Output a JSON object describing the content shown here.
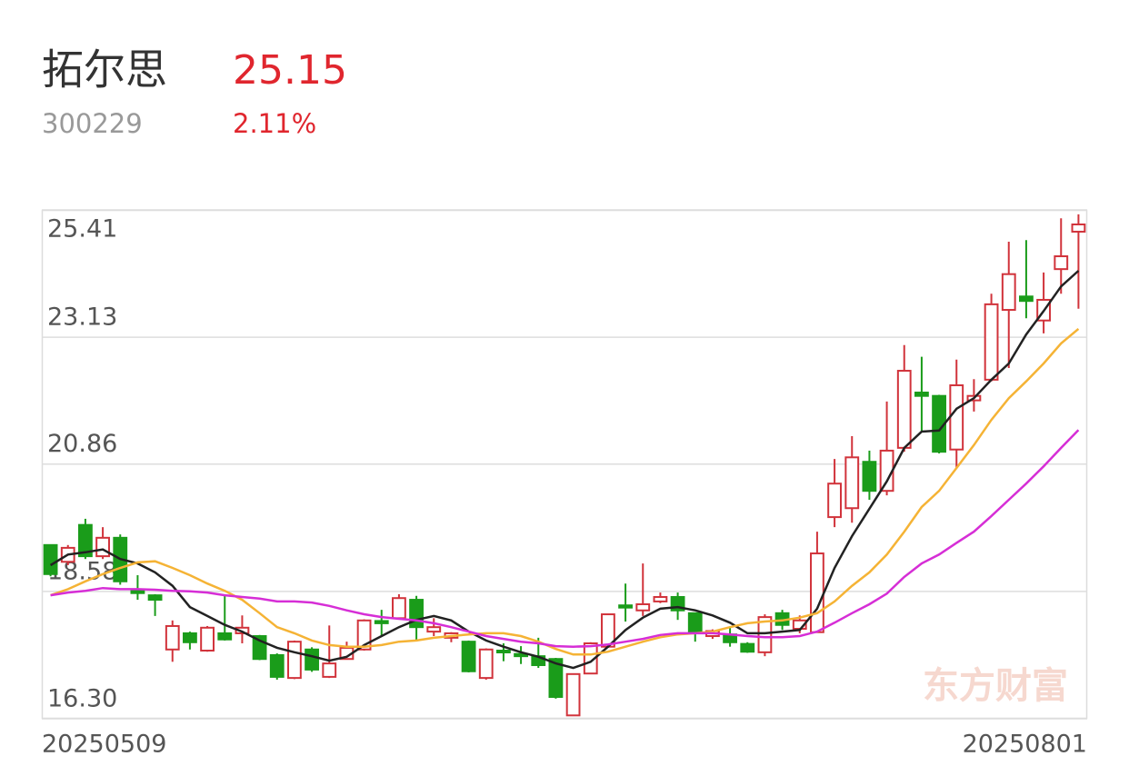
{
  "header": {
    "name": "拓尔思",
    "price": "25.15",
    "code": "300229",
    "change": "2.11%"
  },
  "chart_data": {
    "type": "candlestick",
    "watermark": "东方财富",
    "categories": [
      "20250509",
      null,
      null,
      null,
      null,
      null,
      null,
      null,
      null,
      null,
      null,
      null,
      null,
      null,
      null,
      null,
      null,
      null,
      null,
      null,
      null,
      null,
      null,
      null,
      null,
      null,
      null,
      null,
      null,
      null,
      null,
      null,
      null,
      null,
      null,
      null,
      null,
      null,
      null,
      null,
      null,
      null,
      null,
      null,
      null,
      null,
      null,
      null,
      null,
      null,
      null,
      null,
      null,
      null,
      null,
      null,
      null,
      null,
      null,
      "20250801"
    ],
    "open": [
      19.41,
      19.11,
      19.77,
      19.21,
      19.54,
      18.6,
      18.51,
      17.54,
      17.83,
      17.52,
      17.83,
      17.83,
      17.78,
      17.44,
      17.03,
      17.54,
      17.05,
      17.37,
      17.54,
      18.05,
      18.1,
      18.43,
      17.86,
      17.75,
      17.68,
      17.03,
      17.52,
      17.46,
      17.42,
      17.37,
      16.36,
      17.11,
      17.59,
      18.33,
      18.24,
      18.4,
      18.48,
      18.19,
      17.78,
      17.81,
      17.64,
      17.49,
      18.19,
      17.91,
      17.85,
      19.91,
      20.07,
      20.9,
      20.38,
      21.15,
      22.14,
      22.08,
      21.12,
      22.0,
      22.37,
      23.62,
      23.86,
      23.43,
      24.35,
      25.02
    ],
    "high": [
      19.41,
      19.41,
      19.88,
      19.73,
      19.6,
      18.87,
      18.53,
      18.06,
      17.86,
      17.96,
      18.51,
      18.15,
      17.8,
      17.47,
      17.7,
      17.58,
      17.97,
      17.68,
      18.08,
      18.25,
      18.53,
      18.5,
      18.1,
      17.85,
      17.7,
      17.56,
      17.65,
      17.6,
      17.75,
      17.39,
      17.1,
      17.67,
      18.18,
      18.72,
      19.08,
      18.56,
      18.56,
      18.2,
      17.9,
      17.94,
      17.67,
      18.17,
      18.25,
      18.15,
      19.65,
      20.95,
      21.36,
      21.1,
      21.98,
      22.99,
      22.78,
      22.1,
      22.73,
      22.38,
      23.91,
      24.84,
      24.87,
      24.29,
      25.26,
      25.33
    ],
    "low": [
      18.85,
      19.05,
      19.16,
      19.16,
      18.7,
      18.43,
      18.14,
      17.32,
      17.54,
      17.5,
      17.7,
      17.65,
      17.35,
      17.0,
      17.01,
      17.14,
      17.03,
      17.36,
      17.52,
      17.78,
      18.09,
      17.71,
      17.78,
      17.67,
      17.13,
      17.0,
      17.33,
      17.28,
      17.21,
      16.66,
      16.36,
      17.1,
      17.57,
      18.04,
      18.14,
      18.37,
      18.07,
      17.68,
      17.73,
      17.59,
      17.48,
      17.42,
      17.89,
      17.83,
      17.85,
      19.73,
      19.81,
      20.22,
      20.3,
      21.08,
      21.44,
      21.05,
      20.79,
      21.8,
      22.34,
      22.58,
      23.47,
      23.2,
      23.91,
      23.64
    ],
    "close": [
      18.89,
      19.36,
      19.21,
      19.54,
      18.76,
      18.55,
      18.43,
      17.96,
      17.67,
      17.93,
      17.72,
      17.93,
      17.37,
      17.05,
      17.68,
      17.18,
      17.29,
      17.57,
      18.06,
      18.01,
      18.46,
      17.94,
      17.94,
      17.83,
      17.15,
      17.54,
      17.49,
      17.42,
      17.26,
      16.69,
      17.1,
      17.65,
      18.17,
      18.29,
      18.35,
      18.48,
      18.24,
      17.83,
      17.87,
      17.67,
      17.5,
      18.12,
      17.98,
      18.06,
      19.26,
      20.51,
      20.98,
      20.38,
      21.1,
      22.53,
      22.08,
      21.08,
      22.27,
      22.08,
      23.72,
      24.26,
      23.78,
      23.8,
      24.58,
      25.15
    ],
    "up_color": "#d1333b",
    "down_color": "#1a9c1a",
    "series": [
      {
        "color": "#222222",
        "values": [
          19.05,
          19.24,
          19.28,
          19.33,
          19.16,
          19.08,
          18.92,
          18.68,
          18.3,
          18.14,
          17.98,
          17.86,
          17.7,
          17.57,
          17.49,
          17.42,
          17.34,
          17.41,
          17.62,
          17.78,
          17.94,
          18.07,
          18.14,
          18.06,
          17.86,
          17.7,
          17.59,
          17.49,
          17.41,
          17.29,
          17.21,
          17.32,
          17.59,
          17.89,
          18.11,
          18.27,
          18.3,
          18.24,
          18.15,
          18.02,
          17.83,
          17.83,
          17.86,
          17.89,
          18.27,
          19.0,
          19.57,
          20.06,
          20.55,
          21.15,
          21.44,
          21.46,
          21.85,
          22.04,
          22.37,
          22.66,
          23.18,
          23.6,
          24.04,
          24.32
        ]
      },
      {
        "color": "#f5b335",
        "values": [
          18.51,
          18.62,
          18.76,
          18.89,
          19.0,
          19.1,
          19.12,
          19.0,
          18.87,
          18.72,
          18.59,
          18.43,
          18.19,
          17.94,
          17.83,
          17.7,
          17.62,
          17.59,
          17.59,
          17.62,
          17.68,
          17.7,
          17.75,
          17.78,
          17.81,
          17.83,
          17.83,
          17.78,
          17.68,
          17.55,
          17.45,
          17.45,
          17.5,
          17.59,
          17.68,
          17.76,
          17.81,
          17.83,
          17.86,
          17.94,
          18.01,
          18.04,
          18.06,
          18.11,
          18.19,
          18.4,
          18.68,
          18.92,
          19.24,
          19.65,
          20.09,
          20.38,
          20.79,
          21.2,
          21.65,
          22.04,
          22.34,
          22.66,
          23.02,
          23.28
        ]
      },
      {
        "color": "#d62ed6",
        "values": [
          18.51,
          18.56,
          18.59,
          18.64,
          18.62,
          18.62,
          18.61,
          18.59,
          18.58,
          18.56,
          18.51,
          18.48,
          18.45,
          18.4,
          18.4,
          18.38,
          18.32,
          18.24,
          18.17,
          18.12,
          18.09,
          18.06,
          18.01,
          17.94,
          17.86,
          17.78,
          17.73,
          17.68,
          17.65,
          17.6,
          17.59,
          17.6,
          17.63,
          17.68,
          17.73,
          17.8,
          17.83,
          17.83,
          17.83,
          17.81,
          17.78,
          17.76,
          17.76,
          17.78,
          17.86,
          18.02,
          18.19,
          18.35,
          18.54,
          18.84,
          19.08,
          19.24,
          19.45,
          19.65,
          19.93,
          20.22,
          20.51,
          20.82,
          21.15,
          21.47
        ]
      }
    ],
    "ylim": [
      16.3,
      25.41
    ],
    "yticks": [
      {
        "value": 16.3,
        "label": "16.30"
      },
      18.58,
      20.86,
      23.13,
      25.41
    ],
    "grid": true
  }
}
